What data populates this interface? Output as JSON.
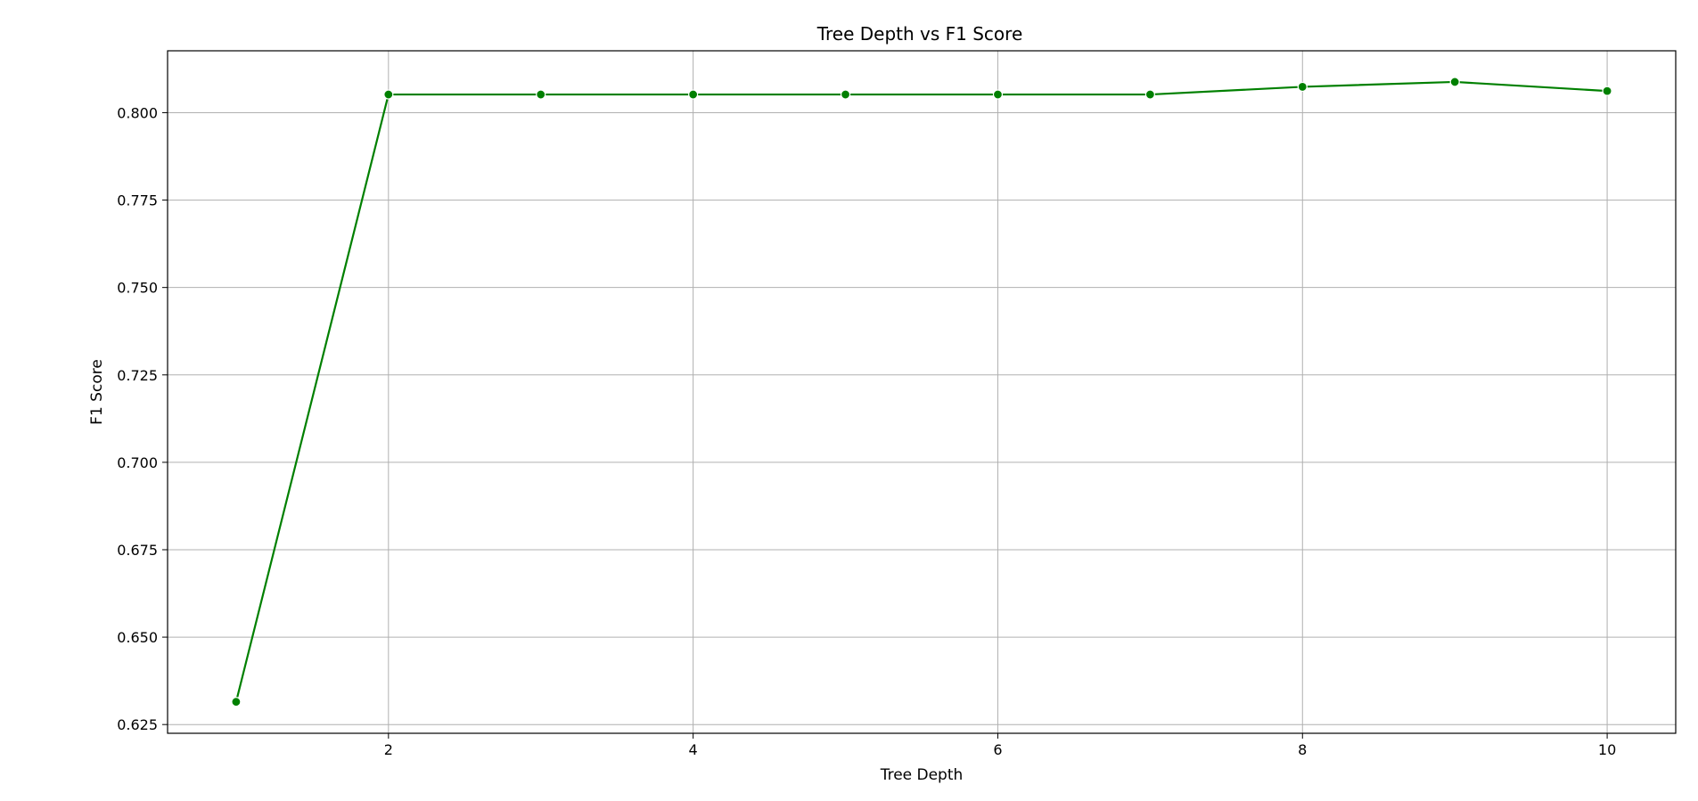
{
  "chart_data": {
    "type": "line",
    "title": "Tree Depth vs F1 Score",
    "xlabel": "Tree Depth",
    "ylabel": "F1 Score",
    "x": [
      1,
      2,
      3,
      4,
      5,
      6,
      7,
      8,
      9,
      10
    ],
    "series": [
      {
        "values": [
          0.6315,
          0.8052,
          0.8052,
          0.8052,
          0.8052,
          0.8052,
          0.8052,
          0.8074,
          0.8088,
          0.8062
        ]
      }
    ],
    "xlim": [
      0.55,
      10.45
    ],
    "ylim": [
      0.6225,
      0.8177
    ],
    "xticks": [
      2,
      4,
      6,
      8,
      10
    ],
    "xtick_labels": [
      "2",
      "4",
      "6",
      "8",
      "10"
    ],
    "yticks": [
      0.625,
      0.65,
      0.675,
      0.7,
      0.725,
      0.75,
      0.775,
      0.8
    ],
    "ytick_labels": [
      "0.625",
      "0.650",
      "0.675",
      "0.700",
      "0.725",
      "0.750",
      "0.775",
      "0.800"
    ],
    "grid": true,
    "line_color": "#008000",
    "marker": "circle"
  }
}
